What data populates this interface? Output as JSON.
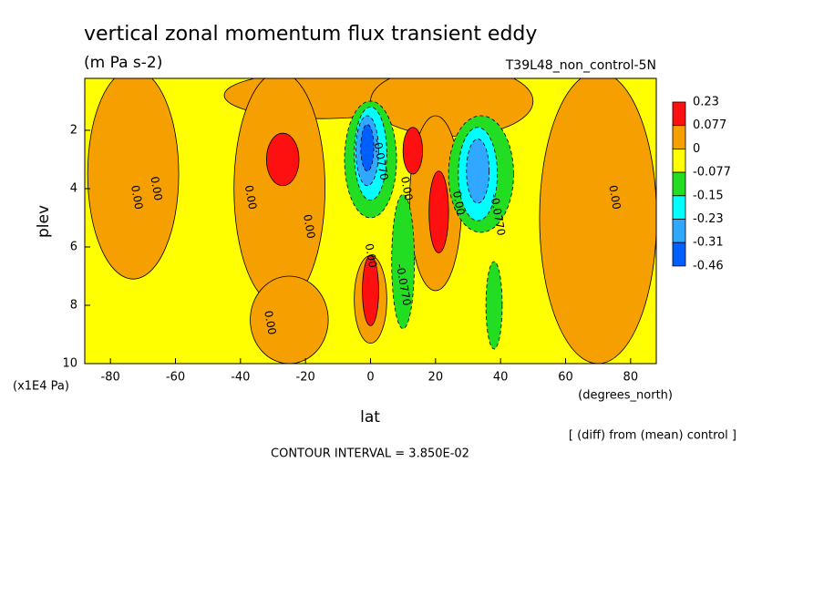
{
  "chart_data": {
    "type": "contour",
    "title": "vertical zonal momentum flux transient eddy",
    "subtitle": "(m Pa s-2)",
    "dataset": "T39L48_non_control-5N",
    "x_label": "lat",
    "x_units": "(degrees_north)",
    "y_label": "plev",
    "y_units": "(x1E4 Pa)",
    "note": "[ (diff) from (mean) control ]",
    "contour_interval": "CONTOUR INTERVAL = 3.850E-02",
    "xlim": [
      -87.9,
      87.9
    ],
    "ylim": [
      10,
      0.22
    ],
    "xticks": [
      -80,
      -60,
      -40,
      -20,
      0,
      20,
      40,
      60,
      80
    ],
    "yticks": [
      2,
      4,
      6,
      8,
      10
    ],
    "background_value": -0.03,
    "levels": [
      0.23,
      0.077,
      0,
      -0.077,
      -0.15,
      -0.23,
      -0.31,
      -0.46
    ],
    "level_colors": [
      "#ff1010",
      "#f5a000",
      "#ffff00",
      "#22dd22",
      "#00ffff",
      "#30a8ff",
      "#0060ff"
    ],
    "regions": [
      {
        "lat": -73,
        "plev": 3.5,
        "lat_radius": 14,
        "plev_radius": 3.6,
        "value": 0.04
      },
      {
        "lat": -15,
        "plev": 0.8,
        "lat_radius": 30,
        "plev_radius": 0.8,
        "value": 0.04
      },
      {
        "lat": 25,
        "plev": 1.0,
        "lat_radius": 25,
        "plev_radius": 1.2,
        "value": 0.04
      },
      {
        "lat": -28,
        "plev": 4.0,
        "lat_radius": 14,
        "plev_radius": 4.0,
        "value": 0.04
      },
      {
        "lat": -25,
        "plev": 8.5,
        "lat_radius": 12,
        "plev_radius": 1.5,
        "value": 0.04
      },
      {
        "lat": 70,
        "plev": 5.0,
        "lat_radius": 18,
        "plev_radius": 5.0,
        "value": 0.04
      },
      {
        "lat": 20,
        "plev": 4.5,
        "lat_radius": 8,
        "plev_radius": 3.0,
        "value": 0.04
      },
      {
        "lat": 0,
        "plev": 7.8,
        "lat_radius": 5,
        "plev_radius": 1.5,
        "value": 0.04
      },
      {
        "lat": -27,
        "plev": 3.0,
        "lat_radius": 5,
        "plev_radius": 0.9,
        "value": 0.15
      },
      {
        "lat": 13,
        "plev": 2.7,
        "lat_radius": 3,
        "plev_radius": 0.8,
        "value": 0.15
      },
      {
        "lat": 21,
        "plev": 4.8,
        "lat_radius": 3,
        "plev_radius": 1.4,
        "value": 0.15
      },
      {
        "lat": 0,
        "plev": 7.5,
        "lat_radius": 2.5,
        "plev_radius": 1.2,
        "value": 0.15
      },
      {
        "lat": 0,
        "plev": 3.0,
        "lat_radius": 8,
        "plev_radius": 2.0,
        "value": -0.11
      },
      {
        "lat": 10,
        "plev": 6.5,
        "lat_radius": 3.5,
        "plev_radius": 2.3,
        "value": -0.11
      },
      {
        "lat": 34,
        "plev": 3.5,
        "lat_radius": 10,
        "plev_radius": 2.0,
        "value": -0.11
      },
      {
        "lat": 38,
        "plev": 8.0,
        "lat_radius": 2.5,
        "plev_radius": 1.5,
        "value": -0.11
      },
      {
        "lat": 0,
        "plev": 2.8,
        "lat_radius": 5,
        "plev_radius": 1.6,
        "value": -0.19
      },
      {
        "lat": 33,
        "plev": 3.5,
        "lat_radius": 6,
        "plev_radius": 1.6,
        "value": -0.19
      },
      {
        "lat": -1,
        "plev": 2.7,
        "lat_radius": 3.5,
        "plev_radius": 1.2,
        "value": -0.27
      },
      {
        "lat": 33,
        "plev": 3.4,
        "lat_radius": 3.5,
        "plev_radius": 1.1,
        "value": -0.27
      },
      {
        "lat": -1,
        "plev": 2.6,
        "lat_radius": 2,
        "plev_radius": 0.8,
        "value": -0.38
      }
    ],
    "contour_labels": [
      {
        "text": "0.00",
        "lat": -72,
        "plev": 4.3
      },
      {
        "text": "0.00",
        "lat": -66,
        "plev": 4.0
      },
      {
        "text": "0.00",
        "lat": -37,
        "plev": 4.3
      },
      {
        "text": "0.00",
        "lat": -19,
        "plev": 5.3
      },
      {
        "text": "0.00",
        "lat": -31,
        "plev": 8.6
      },
      {
        "text": "0.00",
        "lat": 0,
        "plev": 6.3
      },
      {
        "text": "0.00",
        "lat": 11,
        "plev": 4.0
      },
      {
        "text": "0.00",
        "lat": 27,
        "plev": 4.5
      },
      {
        "text": "0.00",
        "lat": 75,
        "plev": 4.3
      },
      {
        "text": "-0.0770",
        "lat": 10,
        "plev": 7.3
      },
      {
        "text": "-0.0770",
        "lat": 3,
        "plev": 3.0
      },
      {
        "text": "-0.0770",
        "lat": 39,
        "plev": 4.9
      }
    ]
  }
}
